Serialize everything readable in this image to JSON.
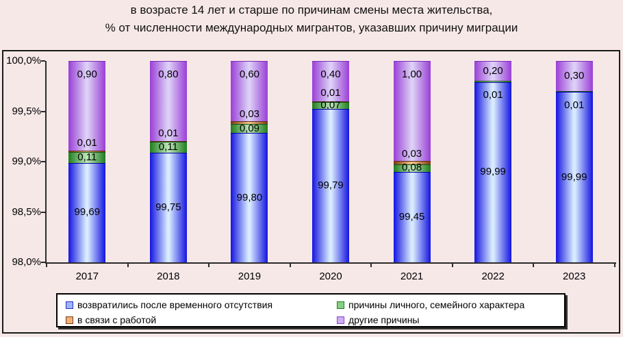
{
  "title": {
    "line1": "в возрасте 14 лет и старше по причинам смены места жительства,",
    "line2": "% от численности международных мигрантов, указавших причину миграции"
  },
  "chart_data": {
    "type": "bar",
    "stacked": true,
    "normalized_100_percent": true,
    "categories": [
      "2017",
      "2018",
      "2019",
      "2020",
      "2021",
      "2022",
      "2023"
    ],
    "series": [
      {
        "name": "возвратились после временного отсутствия",
        "values": [
          99.69,
          99.75,
          99.8,
          99.79,
          99.45,
          99.99,
          99.99
        ],
        "color_edge": "#1414e0",
        "color_center": "#d9ecff",
        "border": "#0000a0",
        "swatch_fill": "#9db7f2",
        "swatch_border": "#2a2ad0"
      },
      {
        "name": "причины личного, семейного характера",
        "values": [
          0.11,
          0.11,
          0.09,
          0.07,
          0.08,
          0.01,
          0.01
        ],
        "color_edge": "#1e7d1e",
        "color_center": "#b9e4b4",
        "border": "#145214",
        "swatch_fill": "#86cf86",
        "swatch_border": "#1e7d1e"
      },
      {
        "name": "в связи с работой",
        "values": [
          0.01,
          0.01,
          0.03,
          0.01,
          0.03,
          null,
          null
        ],
        "color_edge": "#7b3a10",
        "color_center": "#f2c488",
        "border": "#5a2a0c",
        "swatch_fill": "#efb07a",
        "swatch_border": "#7b3a10"
      },
      {
        "name": "другие причины",
        "values": [
          0.9,
          0.8,
          0.6,
          0.4,
          1.0,
          0.2,
          0.3
        ],
        "color_edge": "#9a3fd6",
        "color_center": "#dcd0f6",
        "border": "#7a2ab8",
        "swatch_fill": "#cfaef2",
        "swatch_border": "#8a3fd0"
      }
    ],
    "data_label_decimal_separator": ",",
    "y_axis": {
      "ylim": [
        98,
        100
      ],
      "ticks": [
        {
          "value": 100.0,
          "label": "100,0%"
        },
        {
          "value": 99.5,
          "label": "99,5%"
        },
        {
          "value": 99.0,
          "label": "99,0%"
        },
        {
          "value": 98.5,
          "label": "98,5%"
        },
        {
          "value": 98.0,
          "label": "98,0%"
        }
      ]
    },
    "grid": false,
    "legend_position": "bottom"
  },
  "colors": {
    "page_background": "#f7e8e8",
    "frame_border": "#1a1a1a",
    "legend_background": "#ffffff"
  }
}
